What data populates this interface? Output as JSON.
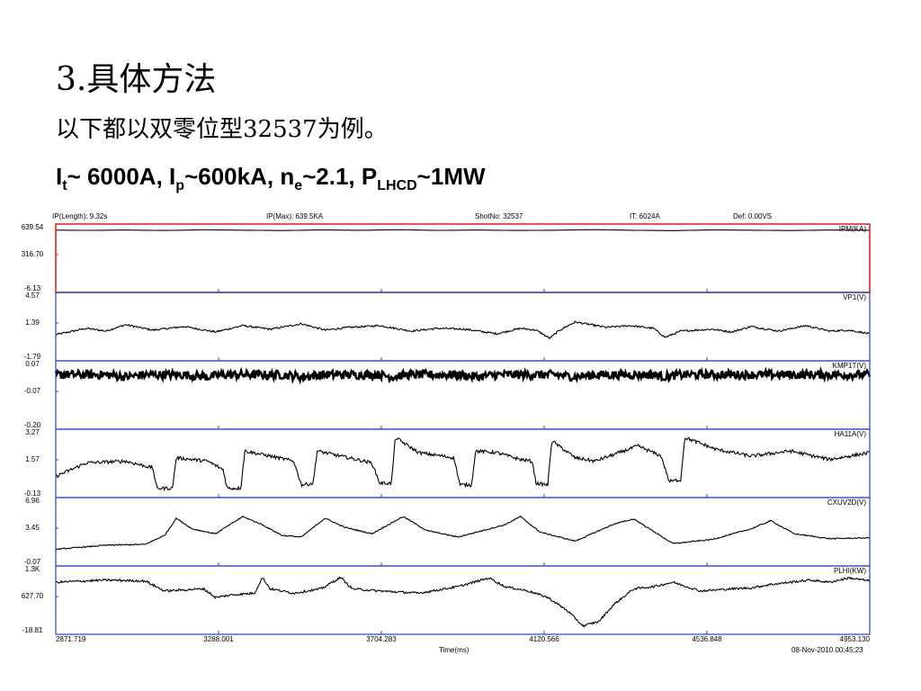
{
  "slide": {
    "title": "3.具体方法",
    "subtitle": "以下都以双零位型32537为例。",
    "params": [
      {
        "main": "I",
        "sub": "t",
        "rest": "~ 6000A, "
      },
      {
        "main": "I",
        "sub": "p",
        "rest": "~600kA, "
      },
      {
        "main": "n",
        "sub": "e",
        "rest": "~2.1, "
      },
      {
        "main": "P",
        "sub": "LHCD",
        "rest": "~1MW"
      }
    ]
  },
  "header": {
    "length": "IP(Length): 9.32s",
    "max": "IP(Max): 639.5KA",
    "shot": "ShotNo: 32537",
    "it": "IT:  6024A",
    "def": "Def: 0.00VS"
  },
  "footer": {
    "xlabel": "Time(ms)",
    "datetime": "08-Nov-2010 00:45:23"
  },
  "colors": {
    "highlight_border": "#e8281e",
    "panel_border": "#2a3fc8",
    "trace": "#000000"
  },
  "chart_data": {
    "type": "line",
    "x_ticks": [
      "2871.719",
      "3288.001",
      "3704.283",
      "4120.566",
      "4536.848",
      "4953.130"
    ],
    "xlim": [
      2871.719,
      4953.13
    ],
    "xlabel": "Time(ms)",
    "panels": [
      {
        "name": "IPM(KA)",
        "ticks": [
          "639.54",
          "316.70",
          "-6.13"
        ],
        "ylim": [
          -6.13,
          639.54
        ],
        "highlighted": true,
        "points": [
          [
            2871.7,
            632
          ],
          [
            2950,
            629
          ],
          [
            3050,
            633
          ],
          [
            3150,
            628
          ],
          [
            3250,
            635
          ],
          [
            3350,
            631
          ],
          [
            3450,
            627
          ],
          [
            3550,
            634
          ],
          [
            3650,
            630
          ],
          [
            3750,
            636
          ],
          [
            3850,
            629
          ],
          [
            3950,
            633
          ],
          [
            4050,
            628
          ],
          [
            4150,
            631
          ],
          [
            4250,
            637
          ],
          [
            4350,
            630
          ],
          [
            4450,
            626
          ],
          [
            4550,
            634
          ],
          [
            4650,
            631
          ],
          [
            4750,
            627
          ],
          [
            4850,
            633
          ],
          [
            4953.1,
            630
          ]
        ]
      },
      {
        "name": "VP1(V)",
        "ticks": [
          "4.57",
          "1.39",
          "-1.79"
        ],
        "ylim": [
          -1.79,
          4.57
        ],
        "noise": 0.1,
        "points": [
          [
            2871.7,
            0.5
          ],
          [
            2950,
            1.2
          ],
          [
            3000,
            0.9
          ],
          [
            3050,
            1.6
          ],
          [
            3120,
            1.0
          ],
          [
            3200,
            1.4
          ],
          [
            3280,
            0.8
          ],
          [
            3350,
            1.5
          ],
          [
            3420,
            1.1
          ],
          [
            3500,
            1.7
          ],
          [
            3560,
            1.0
          ],
          [
            3620,
            1.3
          ],
          [
            3700,
            1.5
          ],
          [
            3780,
            0.9
          ],
          [
            3850,
            1.2
          ],
          [
            3920,
            1.1
          ],
          [
            4000,
            0.6
          ],
          [
            4060,
            1.2
          ],
          [
            4100,
            1.0
          ],
          [
            4135,
            0.1
          ],
          [
            4160,
            1.0
          ],
          [
            4200,
            1.9
          ],
          [
            4280,
            1.3
          ],
          [
            4340,
            1.5
          ],
          [
            4400,
            1.2
          ],
          [
            4430,
            0.2
          ],
          [
            4470,
            0.9
          ],
          [
            4550,
            1.1
          ],
          [
            4600,
            0.8
          ],
          [
            4650,
            1.4
          ],
          [
            4720,
            0.9
          ],
          [
            4790,
            1.5
          ],
          [
            4850,
            0.9
          ],
          [
            4900,
            1.0
          ],
          [
            4953.1,
            0.6
          ]
        ]
      },
      {
        "name": "KMP1T(V)",
        "ticks": [
          "0.07",
          "-0.07",
          "-0.20"
        ],
        "ylim": [
          -0.2,
          0.07
        ],
        "noise": 0.02,
        "points": [
          [
            2871.7,
            0.03
          ],
          [
            3000,
            0.03
          ],
          [
            3050,
            0.02
          ],
          [
            3100,
            0.03
          ],
          [
            3200,
            0.03
          ],
          [
            3260,
            0.02
          ],
          [
            3300,
            0.03
          ],
          [
            3450,
            0.03
          ],
          [
            3500,
            0.02
          ],
          [
            3550,
            0.03
          ],
          [
            3700,
            0.03
          ],
          [
            3730,
            0.02
          ],
          [
            3770,
            0.03
          ],
          [
            3900,
            0.03
          ],
          [
            3950,
            0.02
          ],
          [
            4000,
            0.03
          ],
          [
            4150,
            0.03
          ],
          [
            4200,
            0.02
          ],
          [
            4250,
            0.03
          ],
          [
            4400,
            0.03
          ],
          [
            4430,
            0.02
          ],
          [
            4470,
            0.03
          ],
          [
            4953.1,
            0.03
          ]
        ]
      },
      {
        "name": "HA11A(V)",
        "ticks": [
          "3.27",
          "1.57",
          "-0.13"
        ],
        "ylim": [
          -0.13,
          3.27
        ],
        "noise": 0.1,
        "points": [
          [
            2871.7,
            0.8
          ],
          [
            2950,
            1.6
          ],
          [
            3050,
            1.7
          ],
          [
            3120,
            1.3
          ],
          [
            3130,
            0.1
          ],
          [
            3170,
            0.1
          ],
          [
            3180,
            1.9
          ],
          [
            3260,
            1.7
          ],
          [
            3300,
            1.2
          ],
          [
            3310,
            0.1
          ],
          [
            3345,
            0.1
          ],
          [
            3355,
            2.3
          ],
          [
            3420,
            2.0
          ],
          [
            3480,
            1.7
          ],
          [
            3500,
            0.3
          ],
          [
            3530,
            0.4
          ],
          [
            3540,
            2.3
          ],
          [
            3600,
            2.0
          ],
          [
            3680,
            1.6
          ],
          [
            3700,
            0.4
          ],
          [
            3730,
            0.4
          ],
          [
            3740,
            3.1
          ],
          [
            3800,
            2.2
          ],
          [
            3860,
            2.0
          ],
          [
            3890,
            1.9
          ],
          [
            3905,
            0.3
          ],
          [
            3935,
            0.3
          ],
          [
            3945,
            2.3
          ],
          [
            4000,
            2.2
          ],
          [
            4060,
            1.8
          ],
          [
            4090,
            1.7
          ],
          [
            4100,
            0.4
          ],
          [
            4130,
            0.3
          ],
          [
            4140,
            2.9
          ],
          [
            4200,
            1.9
          ],
          [
            4250,
            1.7
          ],
          [
            4300,
            2.1
          ],
          [
            4360,
            2.6
          ],
          [
            4420,
            2.0
          ],
          [
            4440,
            0.5
          ],
          [
            4470,
            0.6
          ],
          [
            4480,
            3.1
          ],
          [
            4560,
            2.4
          ],
          [
            4650,
            2.0
          ],
          [
            4750,
            2.3
          ],
          [
            4850,
            1.8
          ],
          [
            4953.1,
            2.2
          ]
        ]
      },
      {
        "name": "CXUV2D(V)",
        "ticks": [
          "6.96",
          "3.45",
          "-0.07"
        ],
        "ylim": [
          -0.07,
          6.96
        ],
        "noise": 0.07,
        "points": [
          [
            2871.7,
            1.3
          ],
          [
            3000,
            1.8
          ],
          [
            3100,
            1.9
          ],
          [
            3150,
            3.0
          ],
          [
            3180,
            5.1
          ],
          [
            3220,
            3.8
          ],
          [
            3280,
            3.2
          ],
          [
            3350,
            5.3
          ],
          [
            3400,
            4.3
          ],
          [
            3450,
            3.0
          ],
          [
            3500,
            2.8
          ],
          [
            3560,
            5.1
          ],
          [
            3610,
            4.0
          ],
          [
            3680,
            3.2
          ],
          [
            3760,
            5.3
          ],
          [
            3820,
            3.6
          ],
          [
            3900,
            2.8
          ],
          [
            4020,
            4.3
          ],
          [
            4060,
            5.3
          ],
          [
            4110,
            3.4
          ],
          [
            4200,
            2.3
          ],
          [
            4300,
            4.4
          ],
          [
            4350,
            5.0
          ],
          [
            4400,
            3.5
          ],
          [
            4450,
            2.0
          ],
          [
            4550,
            2.5
          ],
          [
            4650,
            3.8
          ],
          [
            4700,
            4.8
          ],
          [
            4760,
            3.2
          ],
          [
            4850,
            2.6
          ],
          [
            4953.1,
            2.7
          ]
        ]
      },
      {
        "name": "PLHI(KW)",
        "ticks": [
          "1.3K",
          "627.70",
          "-18.81"
        ],
        "ylim": [
          -18.81,
          1300
        ],
        "noise": 25,
        "points": [
          [
            2871.7,
            1050
          ],
          [
            3000,
            1100
          ],
          [
            3100,
            1080
          ],
          [
            3150,
            850
          ],
          [
            3250,
            900
          ],
          [
            3280,
            700
          ],
          [
            3320,
            760
          ],
          [
            3380,
            800
          ],
          [
            3400,
            1160
          ],
          [
            3420,
            900
          ],
          [
            3480,
            800
          ],
          [
            3550,
            900
          ],
          [
            3600,
            1160
          ],
          [
            3630,
            900
          ],
          [
            3700,
            850
          ],
          [
            3800,
            800
          ],
          [
            3900,
            950
          ],
          [
            3980,
            1150
          ],
          [
            4020,
            950
          ],
          [
            4080,
            850
          ],
          [
            4130,
            700
          ],
          [
            4180,
            400
          ],
          [
            4220,
            50
          ],
          [
            4260,
            150
          ],
          [
            4300,
            550
          ],
          [
            4350,
            900
          ],
          [
            4400,
            950
          ],
          [
            4450,
            1050
          ],
          [
            4520,
            850
          ],
          [
            4600,
            900
          ],
          [
            4650,
            920
          ],
          [
            4700,
            1000
          ],
          [
            4750,
            1050
          ],
          [
            4800,
            1100
          ],
          [
            4850,
            1050
          ],
          [
            4900,
            1150
          ],
          [
            4953.1,
            1080
          ]
        ]
      }
    ]
  }
}
